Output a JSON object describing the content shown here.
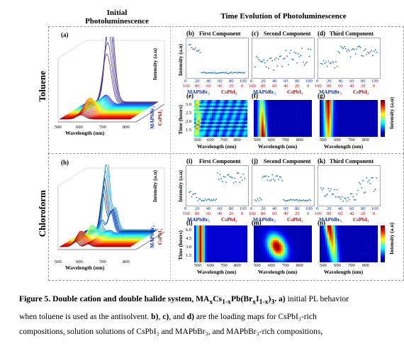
{
  "headers": {
    "initial": "Initial\nPhotoluminescence",
    "time_evolution": "Time Evolution of Photoluminescence"
  },
  "solvents": {
    "top": "Toluene",
    "bottom": "Chloroform"
  },
  "panel_labels": {
    "a": "(a)",
    "b": "(b)",
    "c": "(c)",
    "d": "(d)",
    "e": "(e)",
    "f": "(f)",
    "g": "(g)",
    "h": "(h)",
    "i": "(i)",
    "j": "(j)",
    "k": "(k)",
    "l": "(l)",
    "m": "(m)",
    "n": "(n)"
  },
  "component_titles": {
    "first": "First Component",
    "second": "Second Component",
    "third": "Third Component"
  },
  "axes": {
    "intensity_au": "Intensity (a.u)",
    "wavelength": "Wavelength (nm)",
    "time_hours": "Time (hours)",
    "mapbbr3": "MAPbBr₃",
    "cspbi3": "CsPbI₃",
    "mapbbr_rot": "MAPbBr₃",
    "cspbi_rot": "CsPbI₃",
    "colorbar_label": "Intensity (a.u)"
  },
  "ticks": {
    "blue_top": [
      "0",
      "20",
      "40",
      "60",
      "80",
      "100"
    ],
    "red_bottom": [
      "100",
      "80",
      "60",
      "40",
      "20",
      "0"
    ],
    "wl_heat": [
      "500",
      "600",
      "700",
      "800"
    ],
    "wl_3d": [
      "500",
      "600",
      "700",
      "800"
    ],
    "time_e": [
      "3.0",
      "2.5",
      "2.0",
      "1.5"
    ],
    "time_l": [
      "6.0",
      "4.5",
      "3.0",
      "1.5"
    ]
  },
  "caption": {
    "fig": "Figure 5",
    "title_text": ". Double cation and double halide system, MA",
    "title_x": "x",
    "title_cs": "Cs",
    "title_1x": "1-x",
    "title_pb": "Pb(Br",
    "title_x2": "x",
    "title_i": "I",
    "title_1x2": "1-x",
    "title_end": ")",
    "title_3": "3",
    "title_tail": ". a)",
    "line1_rest": " initial PL behavior",
    "line2": "when toluene is used as the antisolvent.",
    "line2_b": "b)",
    "line2_c": "c)",
    "line2_and": ", and",
    "line2_d": "d)",
    "line2_rest": " are the loading maps for CsPbI₃-rich",
    "line3": "compositions, solution solutions of CsPbI₃ and MAPbBr₃, and MAPbBr₃-rich compositions,"
  },
  "colors": {
    "jet_dark_blue": "#00007f",
    "jet_red": "#ff0000",
    "scatter_blue": "#1f77b4",
    "tick_red": "#d00000",
    "tick_blue": "#1030c0"
  }
}
